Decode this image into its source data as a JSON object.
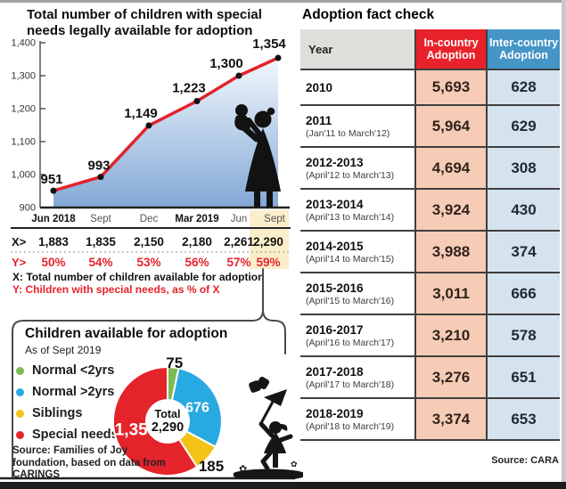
{
  "colors": {
    "accent_red": "#e5232b",
    "accent_blue": "#4595c7",
    "line_red": "#e0232b",
    "highlight_yellow": "#fbeecb",
    "area_gradient_top": "#f3f8fd",
    "area_gradient_bottom": "#82a8d6",
    "in_country_cell_bg": "#f6ccb6",
    "inter_country_cell_bg": "#d5e3ef",
    "pie_green": "#7cba50",
    "pie_blue": "#29a9e1",
    "pie_yellow": "#f3c317",
    "pie_red": "#e5232b"
  },
  "chart_data": [
    {
      "type": "line",
      "title": "Total number of children with special needs legally available for adoption",
      "x": [
        "Jun 2018",
        "Sept",
        "Dec",
        "Mar 2019",
        "Jun",
        "Sept"
      ],
      "values": [
        951,
        993,
        1149,
        1223,
        1300,
        1354
      ],
      "value_labels": [
        "951",
        "993",
        "1,149",
        "1,223",
        "1,300",
        "1,354"
      ],
      "ylim": [
        900,
        1400
      ],
      "ytick_labels": [
        "900",
        "1,000",
        "1,100",
        "1,200",
        "1,300",
        "1,400"
      ],
      "x_row": {
        "label": "X>",
        "values": [
          "1,883",
          "1,835",
          "2,150",
          "2,180",
          "2,261",
          "2,290"
        ]
      },
      "y_row": {
        "label": "Y>",
        "values": [
          "50%",
          "54%",
          "53%",
          "56%",
          "57%",
          "59%"
        ]
      },
      "x_note": "X: Total number of children available for adoption",
      "y_note": "Y: Children with special needs, as % of X",
      "highlighted_column": "Sept",
      "grid": false,
      "legend": "none"
    },
    {
      "type": "pie",
      "title": "Children available for adoption",
      "subtitle": "As of Sept 2019",
      "center_label": "Total",
      "center_value": "2,290",
      "total": 2290,
      "slices": [
        {
          "label": "Normal <2yrs",
          "value": 75,
          "display": "75",
          "color": "#7cba50"
        },
        {
          "label": "Normal >2yrs",
          "value": 676,
          "display": "676",
          "color": "#29a9e1"
        },
        {
          "label": "Siblings",
          "value": 185,
          "display": "185",
          "color": "#f3c317"
        },
        {
          "label": "Special needs",
          "value": 1354,
          "display": "1,354",
          "color": "#e5232b"
        }
      ],
      "source": "Source: Families of Joy foundation, based on data from CARINGS"
    },
    {
      "type": "table",
      "title": "Adoption fact check",
      "columns": [
        "Year",
        "In-country Adoption",
        "Inter-country Adoption"
      ],
      "rows": [
        {
          "year": "2010",
          "period": "",
          "in_country": "5,693",
          "inter_country": "628"
        },
        {
          "year": "2011",
          "period": "(Jan'11 to March'12)",
          "in_country": "5,964",
          "inter_country": "629"
        },
        {
          "year": "2012-2013",
          "period": "(April'12 to March'13)",
          "in_country": "4,694",
          "inter_country": "308"
        },
        {
          "year": "2013-2014",
          "period": "(April'13 to March'14)",
          "in_country": "3,924",
          "inter_country": "430"
        },
        {
          "year": "2014-2015",
          "period": "(April'14 to March'15)",
          "in_country": "3,988",
          "inter_country": "374"
        },
        {
          "year": "2015-2016",
          "period": "(April'15 to March'16)",
          "in_country": "3,011",
          "inter_country": "666"
        },
        {
          "year": "2016-2017",
          "period": "(April'16 to March'17)",
          "in_country": "3,210",
          "inter_country": "578"
        },
        {
          "year": "2017-2018",
          "period": "(April'17 to March'18)",
          "in_country": "3,276",
          "inter_country": "651"
        },
        {
          "year": "2018-2019",
          "period": "(April'18 to March'19)",
          "in_country": "3,374",
          "inter_country": "653"
        }
      ],
      "source": "Source: CARA"
    }
  ]
}
